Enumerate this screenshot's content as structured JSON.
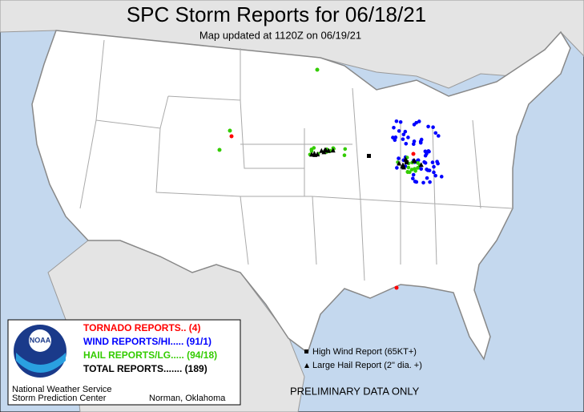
{
  "header": {
    "title": "SPC Storm Reports for 06/18/21",
    "subtitle": "Map updated at 1120Z on 06/19/21"
  },
  "legend": {
    "items": [
      {
        "label": "TORNADO REPORTS.. (4)",
        "color": "#ff0000"
      },
      {
        "label": "WIND REPORTS/HI..... (91/1)",
        "color": "#0000ff"
      },
      {
        "label": "HAIL REPORTS/LG..... (94/18)",
        "color": "#33cc00"
      },
      {
        "label": "TOTAL REPORTS....... (189)",
        "color": "#000000"
      }
    ],
    "logo": "NOAA",
    "office": [
      "National Weather Service",
      "Storm Prediction Center"
    ],
    "location": "Norman, Oklahoma"
  },
  "key": {
    "items": [
      "High Wind Report (65KT+)",
      "Large Hail Report (2\" dia. +)"
    ]
  },
  "footer": "PRELIMINARY DATA ONLY"
}
